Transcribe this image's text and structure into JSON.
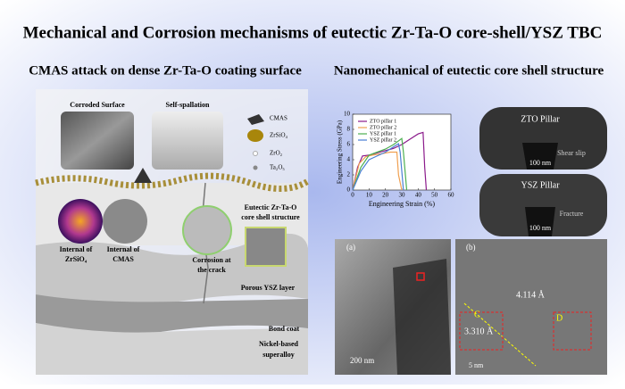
{
  "title": "Mechanical and Corrosion mechanisms of eutectic Zr-Ta-O core-shell/YSZ TBC",
  "left_panel": {
    "heading": "CMAS attack on dense Zr-Ta-O coating surface",
    "image_labels": [
      "Corroded Surface",
      "Self-spallation"
    ],
    "legend": [
      "CMAS",
      "ZrSiO₄",
      "ZrO₂",
      "Ta₂O₅"
    ],
    "insets": [
      [
        "Internal of",
        "ZrSiO₄"
      ],
      [
        "Internal of",
        "CMAS"
      ],
      [
        "Corrosion at",
        "the crack"
      ],
      [
        "Eutectic Zr-Ta-O",
        "core shell structure"
      ]
    ],
    "layers": [
      [
        "Porous YSZ layer"
      ],
      [
        "Bond coat"
      ],
      [
        "Nickel-based",
        "superalloy"
      ]
    ]
  },
  "right_panel": {
    "heading": "Nanomechanical of eutectic core shell structure",
    "pillars": [
      {
        "title": "ZTO Pillar",
        "note": "Shear slip",
        "scale": "100 nm"
      },
      {
        "title": "YSZ Pillar",
        "note": "Fracture",
        "scale": "100 nm"
      }
    ],
    "tem": {
      "panel_a": "(a)",
      "scale_a": "200 nm",
      "panel_b": "(b)",
      "spacing_1": "4.114 Å",
      "spacing_2": "3.310 Å",
      "mark_c": "C",
      "mark_d": "D",
      "scale_b": "5 nm"
    }
  },
  "chart_data": {
    "type": "line",
    "x_label": "Engineering Strain (%)",
    "y_label": "Engineering Stress (GPa)",
    "xlim": [
      0,
      60
    ],
    "xticks": [
      0,
      10,
      20,
      30,
      40,
      50,
      60
    ],
    "ylim": [
      0,
      10
    ],
    "yticks": [
      0,
      2,
      4,
      6,
      8,
      10
    ],
    "series": [
      {
        "name": "ZTO pillar 1",
        "color": "#8b1a8b",
        "x": [
          0,
          3,
          6,
          10,
          15,
          20,
          25,
          30,
          35,
          40,
          43,
          44,
          45
        ],
        "values": [
          0,
          3,
          4.5,
          4.6,
          4.9,
          5.2,
          5.5,
          6,
          6.7,
          7.4,
          7.6,
          3,
          0
        ]
      },
      {
        "name": "ZTO pillar 2",
        "color": "#f0a050",
        "x": [
          0,
          4,
          8,
          12,
          18,
          23,
          27,
          28,
          30
        ],
        "values": [
          0,
          3.5,
          4.4,
          4.6,
          4.8,
          5,
          5,
          2,
          0
        ]
      },
      {
        "name": "YSZ pillar 1",
        "color": "#4caf50",
        "x": [
          0,
          5,
          10,
          15,
          20,
          25,
          30,
          31,
          33
        ],
        "values": [
          0,
          3,
          4.6,
          5,
          5.4,
          6,
          6.8,
          5,
          0
        ]
      },
      {
        "name": "YSZ pillar 2",
        "color": "#4a7fd4",
        "x": [
          0,
          5,
          10,
          15,
          20,
          25,
          28,
          29,
          31
        ],
        "values": [
          0,
          2.5,
          4,
          4.5,
          5,
          5.7,
          6.1,
          5,
          0
        ]
      }
    ]
  }
}
